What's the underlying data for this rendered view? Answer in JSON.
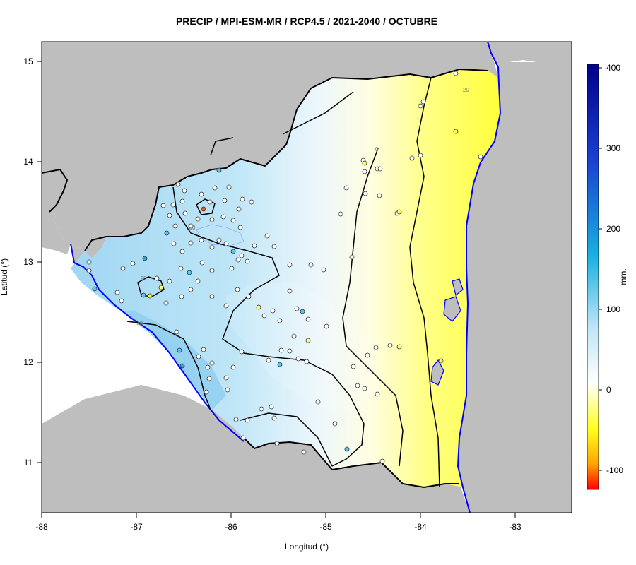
{
  "title": "PRECIP / MPI-ESM-MR / RCP4.5 / 2021-2040 / OCTUBRE",
  "x_axis": {
    "label": "Longitud (°)",
    "ticks": [
      "-88",
      "-87",
      "-86",
      "-85",
      "-84",
      "-83"
    ],
    "range": [
      -88,
      -82.4
    ]
  },
  "y_axis": {
    "label": "Latitud (°)",
    "ticks": [
      "11",
      "12",
      "13",
      "14",
      "15"
    ],
    "range": [
      10.5,
      15.2
    ]
  },
  "colorbar": {
    "label": "mm.",
    "ticks": [
      "400",
      "300",
      "200",
      "100",
      "0",
      "-100"
    ],
    "range": [
      -125,
      400
    ],
    "colors": {
      "dark_blue": "#00008b",
      "blue": "#1a3fd1",
      "cyan": "#19b0e0",
      "light_blue": "#bfe6f7",
      "white": "#ffffff",
      "yellow": "#ffff1a",
      "orange": "#ffa500",
      "red": "#ff0000"
    }
  },
  "contour_labels": [
    "0",
    "20",
    "40",
    "60",
    "-20"
  ],
  "colors": {
    "land_outside": "#bebebe",
    "coastline": "#0000ff",
    "border": "#000000",
    "station_outline": "#333333"
  }
}
